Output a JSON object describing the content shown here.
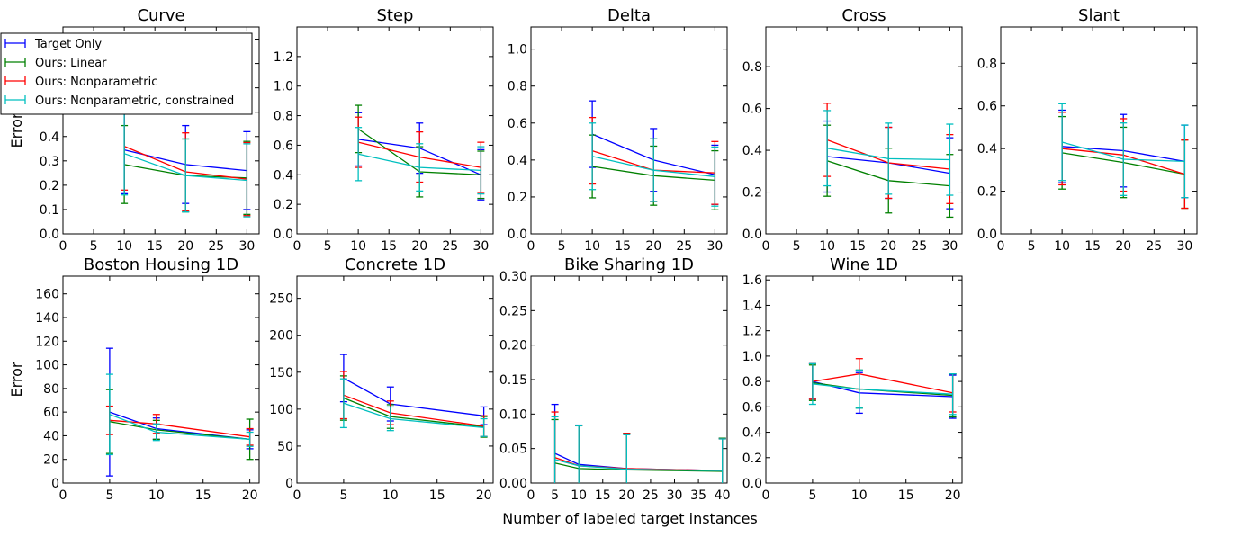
{
  "figure": {
    "xlabel": "Number of labeled target instances",
    "row_ylabels": [
      "Error",
      "Error"
    ]
  },
  "legend": {
    "entries": [
      {
        "name": "Target Only",
        "color": "#0000ff"
      },
      {
        "name": "Ours: Linear",
        "color": "#008000"
      },
      {
        "name": "Ours: Nonparametric",
        "color": "#ff0000"
      },
      {
        "name": "Ours: Nonparametric, constrained",
        "color": "#00bfbf"
      }
    ]
  },
  "chart_data": [
    {
      "type": "line",
      "title": "Curve",
      "ylabel": "Error",
      "xlim": [
        0,
        32
      ],
      "ylim": [
        0,
        0.85
      ],
      "xticks": [
        0,
        5,
        10,
        15,
        20,
        25,
        30
      ],
      "yticks": [
        0.0,
        0.1,
        0.2,
        0.3,
        0.4,
        0.5,
        0.6,
        0.7,
        0.8
      ],
      "ytick_labels": [
        "0.0",
        "0.1",
        "0.2",
        "0.3",
        "0.4",
        "",
        "",
        "",
        "0.8"
      ],
      "x": [
        10,
        20,
        30
      ],
      "series": [
        {
          "name": "Target Only",
          "color": "#0000ff",
          "values": [
            0.345,
            0.285,
            0.26
          ],
          "errors": [
            0.18,
            0.16,
            0.16
          ]
        },
        {
          "name": "Ours: Linear",
          "color": "#008000",
          "values": [
            0.285,
            0.24,
            0.23
          ],
          "errors": [
            0.16,
            0.15,
            0.15
          ]
        },
        {
          "name": "Ours: Nonparametric",
          "color": "#ff0000",
          "values": [
            0.36,
            0.255,
            0.225
          ],
          "errors": [
            0.18,
            0.16,
            0.15
          ]
        },
        {
          "name": "Ours: Nonparametric, constrained",
          "color": "#00bfbf",
          "values": [
            0.33,
            0.24,
            0.22
          ],
          "errors": [
            0.17,
            0.15,
            0.15
          ]
        }
      ]
    },
    {
      "type": "line",
      "title": "Step",
      "ylabel": "",
      "xlim": [
        0,
        32
      ],
      "ylim": [
        0,
        1.4
      ],
      "xticks": [
        0,
        5,
        10,
        15,
        20,
        25,
        30
      ],
      "yticks": [
        0.0,
        0.2,
        0.4,
        0.6,
        0.8,
        1.0,
        1.2
      ],
      "ytick_labels": [
        "0.0",
        "0.2",
        "0.4",
        "0.6",
        "0.8",
        "1.0",
        "1.2"
      ],
      "x": [
        10,
        20,
        30
      ],
      "series": [
        {
          "name": "Target Only",
          "color": "#0000ff",
          "values": [
            0.64,
            0.58,
            0.4
          ],
          "errors": [
            0.18,
            0.17,
            0.17
          ]
        },
        {
          "name": "Ours: Linear",
          "color": "#008000",
          "values": [
            0.71,
            0.42,
            0.4
          ],
          "errors": [
            0.16,
            0.17,
            0.16
          ]
        },
        {
          "name": "Ours: Nonparametric",
          "color": "#ff0000",
          "values": [
            0.62,
            0.52,
            0.45
          ],
          "errors": [
            0.17,
            0.17,
            0.17
          ]
        },
        {
          "name": "Ours: Nonparametric, constrained",
          "color": "#00bfbf",
          "values": [
            0.54,
            0.45,
            0.43
          ],
          "errors": [
            0.18,
            0.16,
            0.16
          ]
        }
      ]
    },
    {
      "type": "line",
      "title": "Delta",
      "ylabel": "",
      "xlim": [
        0,
        32
      ],
      "ylim": [
        0,
        1.12
      ],
      "xticks": [
        0,
        5,
        10,
        15,
        20,
        25,
        30
      ],
      "yticks": [
        0.0,
        0.2,
        0.4,
        0.6,
        0.8,
        1.0
      ],
      "ytick_labels": [
        "0.0",
        "0.2",
        "0.4",
        "0.6",
        "0.8",
        "1.0"
      ],
      "x": [
        10,
        20,
        30
      ],
      "series": [
        {
          "name": "Target Only",
          "color": "#0000ff",
          "values": [
            0.54,
            0.4,
            0.32
          ],
          "errors": [
            0.18,
            0.17,
            0.16
          ]
        },
        {
          "name": "Ours: Linear",
          "color": "#008000",
          "values": [
            0.365,
            0.315,
            0.29
          ],
          "errors": [
            0.17,
            0.16,
            0.16
          ]
        },
        {
          "name": "Ours: Nonparametric",
          "color": "#ff0000",
          "values": [
            0.45,
            0.345,
            0.33
          ],
          "errors": [
            0.18,
            0.17,
            0.17
          ]
        },
        {
          "name": "Ours: Nonparametric, constrained",
          "color": "#00bfbf",
          "values": [
            0.42,
            0.345,
            0.31
          ],
          "errors": [
            0.18,
            0.17,
            0.16
          ]
        }
      ]
    },
    {
      "type": "line",
      "title": "Cross",
      "ylabel": "",
      "xlim": [
        0,
        32
      ],
      "ylim": [
        0,
        0.99
      ],
      "xticks": [
        0,
        5,
        10,
        15,
        20,
        25,
        30
      ],
      "yticks": [
        0.0,
        0.2,
        0.4,
        0.6,
        0.8
      ],
      "ytick_labels": [
        "0.0",
        "0.2",
        "0.4",
        "0.6",
        "0.8"
      ],
      "x": [
        10,
        20,
        30
      ],
      "series": [
        {
          "name": "Target Only",
          "color": "#0000ff",
          "values": [
            0.37,
            0.34,
            0.29
          ],
          "errors": [
            0.17,
            0.17,
            0.17
          ]
        },
        {
          "name": "Ours: Linear",
          "color": "#008000",
          "values": [
            0.35,
            0.255,
            0.23
          ],
          "errors": [
            0.17,
            0.155,
            0.15
          ]
        },
        {
          "name": "Ours: Nonparametric",
          "color": "#ff0000",
          "values": [
            0.45,
            0.34,
            0.31
          ],
          "errors": [
            0.175,
            0.17,
            0.165
          ]
        },
        {
          "name": "Ours: Nonparametric, constrained",
          "color": "#00bfbf",
          "values": [
            0.41,
            0.36,
            0.355
          ],
          "errors": [
            0.18,
            0.17,
            0.17
          ]
        }
      ]
    },
    {
      "type": "line",
      "title": "Slant",
      "ylabel": "",
      "xlim": [
        0,
        32
      ],
      "ylim": [
        0,
        0.97
      ],
      "xticks": [
        0,
        5,
        10,
        15,
        20,
        25,
        30
      ],
      "yticks": [
        0.0,
        0.2,
        0.4,
        0.6,
        0.8
      ],
      "ytick_labels": [
        "0.0",
        "0.2",
        "0.4",
        "0.6",
        "0.8"
      ],
      "x": [
        10,
        20,
        30
      ],
      "series": [
        {
          "name": "Target Only",
          "color": "#0000ff",
          "values": [
            0.41,
            0.39,
            0.34
          ],
          "errors": [
            0.17,
            0.17,
            0.17
          ]
        },
        {
          "name": "Ours: Linear",
          "color": "#008000",
          "values": [
            0.38,
            0.335,
            0.28
          ],
          "errors": [
            0.17,
            0.165,
            0.16
          ]
        },
        {
          "name": "Ours: Nonparametric",
          "color": "#ff0000",
          "values": [
            0.4,
            0.37,
            0.28
          ],
          "errors": [
            0.17,
            0.17,
            0.16
          ]
        },
        {
          "name": "Ours: Nonparametric, constrained",
          "color": "#00bfbf",
          "values": [
            0.43,
            0.35,
            0.34
          ],
          "errors": [
            0.18,
            0.17,
            0.17
          ]
        }
      ]
    },
    {
      "type": "line",
      "title": "Boston Housing 1D",
      "ylabel": "Error",
      "xlim": [
        0,
        21
      ],
      "ylim": [
        0,
        175
      ],
      "xticks": [
        0,
        5,
        10,
        15,
        20
      ],
      "yticks": [
        0,
        20,
        40,
        60,
        80,
        100,
        120,
        140,
        160
      ],
      "ytick_labels": [
        "0",
        "20",
        "40",
        "60",
        "80",
        "100",
        "120",
        "140",
        "160"
      ],
      "x": [
        5,
        10,
        20
      ],
      "series": [
        {
          "name": "Target Only",
          "color": "#0000ff",
          "values": [
            60,
            46,
            37
          ],
          "errors": [
            54,
            9,
            8
          ]
        },
        {
          "name": "Ours: Linear",
          "color": "#008000",
          "values": [
            52,
            45,
            37
          ],
          "errors": [
            27,
            8,
            17
          ]
        },
        {
          "name": "Ours: Nonparametric",
          "color": "#ff0000",
          "values": [
            53,
            50,
            39
          ],
          "errors": [
            12,
            8,
            7
          ]
        },
        {
          "name": "Ours: Nonparametric, constrained",
          "color": "#00bfbf",
          "values": [
            58,
            43,
            37
          ],
          "errors": [
            34,
            7,
            6
          ]
        }
      ]
    },
    {
      "type": "line",
      "title": "Concrete 1D",
      "ylabel": "",
      "xlim": [
        0,
        21
      ],
      "ylim": [
        0,
        280
      ],
      "xticks": [
        0,
        5,
        10,
        15,
        20
      ],
      "yticks": [
        0,
        50,
        100,
        150,
        200,
        250
      ],
      "ytick_labels": [
        "0",
        "50",
        "100",
        "150",
        "200",
        "250"
      ],
      "x": [
        5,
        10,
        20
      ],
      "series": [
        {
          "name": "Target Only",
          "color": "#0000ff",
          "values": [
            142,
            107,
            91
          ],
          "errors": [
            32,
            23,
            12
          ]
        },
        {
          "name": "Ours: Linear",
          "color": "#008000",
          "values": [
            115,
            90,
            76
          ],
          "errors": [
            30,
            16,
            14
          ]
        },
        {
          "name": "Ours: Nonparametric",
          "color": "#ff0000",
          "values": [
            119,
            95,
            77
          ],
          "errors": [
            32,
            16,
            14
          ]
        },
        {
          "name": "Ours: Nonparametric, constrained",
          "color": "#00bfbf",
          "values": [
            108,
            87,
            75
          ],
          "errors": [
            33,
            16,
            12
          ]
        }
      ]
    },
    {
      "type": "line",
      "title": "Bike Sharing 1D",
      "ylabel": "",
      "xlim": [
        0,
        41
      ],
      "ylim": [
        0,
        0.3
      ],
      "xticks": [
        0,
        5,
        10,
        15,
        20,
        25,
        30,
        35,
        40
      ],
      "yticks": [
        0.0,
        0.05,
        0.1,
        0.15,
        0.2,
        0.25,
        0.3
      ],
      "ytick_labels": [
        "0.00",
        "0.05",
        "0.10",
        "0.15",
        "0.20",
        "0.25",
        "0.30"
      ],
      "x": [
        5,
        10,
        20,
        40
      ],
      "series": [
        {
          "name": "Target Only",
          "color": "#0000ff",
          "values": [
            0.043,
            0.027,
            0.021,
            0.018
          ],
          "errors": [
            0.071,
            0.057,
            0.051,
            0.047
          ]
        },
        {
          "name": "Ours: Linear",
          "color": "#008000",
          "values": [
            0.029,
            0.021,
            0.019,
            0.017
          ],
          "errors": [
            0.063,
            0.062,
            0.053,
            0.048
          ]
        },
        {
          "name": "Ours: Nonparametric",
          "color": "#ff0000",
          "values": [
            0.037,
            0.025,
            0.021,
            0.018
          ],
          "errors": [
            0.066,
            0.058,
            0.051,
            0.046
          ]
        },
        {
          "name": "Ours: Nonparametric, constrained",
          "color": "#00bfbf",
          "values": [
            0.034,
            0.025,
            0.02,
            0.018
          ],
          "errors": [
            0.062,
            0.058,
            0.05,
            0.046
          ]
        }
      ]
    },
    {
      "type": "line",
      "title": "Wine 1D",
      "ylabel": "",
      "xlim": [
        0,
        21
      ],
      "ylim": [
        0,
        1.63
      ],
      "xticks": [
        0,
        5,
        10,
        15,
        20
      ],
      "yticks": [
        0.0,
        0.2,
        0.4,
        0.6,
        0.8,
        1.0,
        1.2,
        1.4,
        1.6
      ],
      "ytick_labels": [
        "0.0",
        "0.2",
        "0.4",
        "0.6",
        "0.8",
        "1.0",
        "1.2",
        "1.4",
        "1.6"
      ],
      "x": [
        5,
        10,
        20
      ],
      "series": [
        {
          "name": "Target Only",
          "color": "#0000ff",
          "values": [
            0.8,
            0.71,
            0.68
          ],
          "errors": [
            0.14,
            0.16,
            0.17
          ]
        },
        {
          "name": "Ours: Linear",
          "color": "#008000",
          "values": [
            0.79,
            0.74,
            0.69
          ],
          "errors": [
            0.14,
            0.15,
            0.17
          ]
        },
        {
          "name": "Ours: Nonparametric",
          "color": "#ff0000",
          "values": [
            0.8,
            0.86,
            0.71
          ],
          "errors": [
            0.14,
            0.12,
            0.15
          ]
        },
        {
          "name": "Ours: Nonparametric, constrained",
          "color": "#00bfbf",
          "values": [
            0.78,
            0.74,
            0.7
          ],
          "errors": [
            0.16,
            0.15,
            0.16
          ]
        }
      ]
    }
  ]
}
